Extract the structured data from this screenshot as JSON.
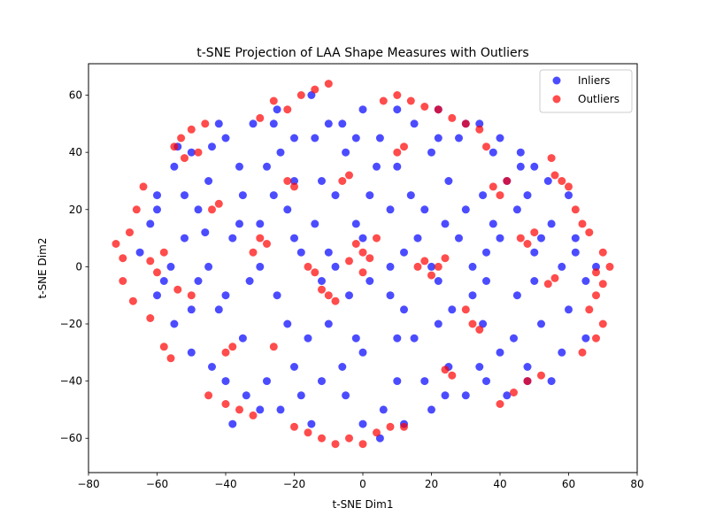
{
  "chart_data": {
    "type": "scatter",
    "title": "t-SNE Projection of LAA Shape Measures with Outliers",
    "xlabel": "t-SNE Dim1",
    "ylabel": "t-SNE Dim2",
    "xlim": [
      -80,
      80
    ],
    "ylim": [
      -72,
      71
    ],
    "xticks": [
      -80,
      -60,
      -40,
      -20,
      0,
      20,
      40,
      60,
      80
    ],
    "yticks": [
      -60,
      -40,
      -20,
      0,
      20,
      40,
      60
    ],
    "grid": false,
    "legend": {
      "position": "top-right"
    },
    "series": [
      {
        "name": "Inliers",
        "color": "#0000ff",
        "alpha": 0.7,
        "points": [
          [
            -65,
            5
          ],
          [
            -62,
            15
          ],
          [
            -60,
            25
          ],
          [
            -58,
            -5
          ],
          [
            -55,
            35
          ],
          [
            -55,
            -20
          ],
          [
            -52,
            10
          ],
          [
            -50,
            40
          ],
          [
            -50,
            -30
          ],
          [
            -48,
            20
          ],
          [
            -45,
            0
          ],
          [
            -45,
            30
          ],
          [
            -42,
            -15
          ],
          [
            -40,
            45
          ],
          [
            -40,
            -40
          ],
          [
            -38,
            10
          ],
          [
            -35,
            25
          ],
          [
            -35,
            -25
          ],
          [
            -32,
            50
          ],
          [
            -30,
            0
          ],
          [
            -30,
            -50
          ],
          [
            -28,
            35
          ],
          [
            -25,
            -10
          ],
          [
            -25,
            55
          ],
          [
            -22,
            20
          ],
          [
            -20,
            -35
          ],
          [
            -20,
            45
          ],
          [
            -18,
            5
          ],
          [
            -15,
            60
          ],
          [
            -15,
            -55
          ],
          [
            -12,
            30
          ],
          [
            -10,
            -20
          ],
          [
            -10,
            50
          ],
          [
            -8,
            0
          ],
          [
            -5,
            40
          ],
          [
            -5,
            -45
          ],
          [
            -2,
            15
          ],
          [
            0,
            55
          ],
          [
            0,
            -30
          ],
          [
            2,
            25
          ],
          [
            5,
            -60
          ],
          [
            5,
            45
          ],
          [
            8,
            -10
          ],
          [
            10,
            35
          ],
          [
            10,
            -40
          ],
          [
            12,
            5
          ],
          [
            15,
            50
          ],
          [
            15,
            -25
          ],
          [
            18,
            20
          ],
          [
            20,
            -50
          ],
          [
            20,
            40
          ],
          [
            22,
            -5
          ],
          [
            25,
            30
          ],
          [
            25,
            -35
          ],
          [
            28,
            10
          ],
          [
            30,
            50
          ],
          [
            30,
            -45
          ],
          [
            32,
            0
          ],
          [
            35,
            25
          ],
          [
            35,
            -20
          ],
          [
            38,
            40
          ],
          [
            40,
            -30
          ],
          [
            40,
            10
          ],
          [
            42,
            30
          ],
          [
            45,
            -10
          ],
          [
            45,
            20
          ],
          [
            48,
            -35
          ],
          [
            50,
            5
          ],
          [
            50,
            35
          ],
          [
            52,
            -20
          ],
          [
            55,
            15
          ],
          [
            55,
            -40
          ],
          [
            58,
            0
          ],
          [
            60,
            25
          ],
          [
            60,
            -15
          ],
          [
            62,
            10
          ],
          [
            65,
            -5
          ],
          [
            65,
            -25
          ],
          [
            68,
            0
          ],
          [
            -60,
            -10
          ],
          [
            -48,
            -5
          ],
          [
            -36,
            15
          ],
          [
            -24,
            40
          ],
          [
            -12,
            -5
          ],
          [
            0,
            10
          ],
          [
            12,
            -15
          ],
          [
            24,
            15
          ],
          [
            36,
            5
          ],
          [
            48,
            25
          ],
          [
            -44,
            -35
          ],
          [
            -28,
            -40
          ],
          [
            -16,
            -25
          ],
          [
            -4,
            -10
          ],
          [
            8,
            20
          ],
          [
            20,
            0
          ],
          [
            32,
            -10
          ],
          [
            44,
            -25
          ],
          [
            -52,
            25
          ],
          [
            -36,
            35
          ],
          [
            -20,
            10
          ],
          [
            -8,
            25
          ],
          [
            4,
            35
          ],
          [
            16,
            10
          ],
          [
            28,
            45
          ],
          [
            40,
            45
          ],
          [
            -40,
            -10
          ],
          [
            -26,
            25
          ],
          [
            -14,
            15
          ],
          [
            -2,
            -25
          ],
          [
            10,
            -25
          ],
          [
            22,
            -20
          ],
          [
            34,
            -35
          ],
          [
            46,
            40
          ],
          [
            -56,
            0
          ],
          [
            -46,
            12
          ],
          [
            -33,
            -5
          ],
          [
            -18,
            -45
          ],
          [
            -6,
            50
          ],
          [
            6,
            -50
          ],
          [
            18,
            -40
          ],
          [
            30,
            20
          ],
          [
            42,
            -45
          ],
          [
            54,
            30
          ],
          [
            -60,
            20
          ],
          [
            -42,
            50
          ],
          [
            -30,
            15
          ],
          [
            -22,
            -20
          ],
          [
            -10,
            5
          ],
          [
            2,
            -5
          ],
          [
            14,
            25
          ],
          [
            26,
            -15
          ],
          [
            38,
            15
          ],
          [
            50,
            -5
          ],
          [
            62,
            5
          ],
          [
            -50,
            -15
          ],
          [
            -34,
            -45
          ],
          [
            -20,
            30
          ],
          [
            -6,
            -35
          ],
          [
            8,
            0
          ],
          [
            22,
            45
          ],
          [
            36,
            -5
          ],
          [
            52,
            10
          ],
          [
            -38,
            -55
          ],
          [
            -24,
            -50
          ],
          [
            -12,
            -40
          ],
          [
            0,
            -55
          ],
          [
            12,
            -55
          ],
          [
            24,
            -45
          ],
          [
            36,
            -40
          ],
          [
            48,
            -40
          ],
          [
            58,
            -30
          ],
          [
            -54,
            42
          ],
          [
            -44,
            42
          ],
          [
            -26,
            50
          ],
          [
            -14,
            45
          ],
          [
            -2,
            45
          ],
          [
            10,
            55
          ],
          [
            22,
            55
          ],
          [
            34,
            50
          ],
          [
            46,
            35
          ]
        ]
      },
      {
        "name": "Outliers",
        "color": "#ff0000",
        "alpha": 0.7,
        "points": [
          [
            -72,
            8
          ],
          [
            -70,
            3
          ],
          [
            -68,
            12
          ],
          [
            -70,
            -5
          ],
          [
            -66,
            20
          ],
          [
            -67,
            -12
          ],
          [
            -64,
            28
          ],
          [
            -62,
            -18
          ],
          [
            -58,
            -28
          ],
          [
            -56,
            -32
          ],
          [
            -55,
            42
          ],
          [
            -53,
            45
          ],
          [
            -50,
            48
          ],
          [
            -48,
            40
          ],
          [
            -46,
            50
          ],
          [
            -52,
            38
          ],
          [
            -45,
            -45
          ],
          [
            -40,
            -48
          ],
          [
            -36,
            -50
          ],
          [
            -32,
            -52
          ],
          [
            -30,
            52
          ],
          [
            -26,
            58
          ],
          [
            -22,
            55
          ],
          [
            -18,
            60
          ],
          [
            -14,
            62
          ],
          [
            -10,
            64
          ],
          [
            -8,
            -62
          ],
          [
            -12,
            -60
          ],
          [
            -16,
            -58
          ],
          [
            -20,
            -56
          ],
          [
            -4,
            -60
          ],
          [
            0,
            -62
          ],
          [
            4,
            -58
          ],
          [
            8,
            -56
          ],
          [
            12,
            -56
          ],
          [
            6,
            58
          ],
          [
            10,
            60
          ],
          [
            14,
            58
          ],
          [
            18,
            56
          ],
          [
            22,
            55
          ],
          [
            26,
            52
          ],
          [
            30,
            50
          ],
          [
            34,
            48
          ],
          [
            36,
            42
          ],
          [
            40,
            -48
          ],
          [
            44,
            -44
          ],
          [
            48,
            -40
          ],
          [
            52,
            -38
          ],
          [
            55,
            38
          ],
          [
            56,
            32
          ],
          [
            58,
            30
          ],
          [
            60,
            28
          ],
          [
            62,
            20
          ],
          [
            64,
            15
          ],
          [
            66,
            12
          ],
          [
            68,
            -2
          ],
          [
            70,
            -6
          ],
          [
            72,
            0
          ],
          [
            70,
            5
          ],
          [
            68,
            -10
          ],
          [
            66,
            -15
          ],
          [
            70,
            -20
          ],
          [
            68,
            -25
          ],
          [
            64,
            -30
          ],
          [
            -2,
            8
          ],
          [
            0,
            5
          ],
          [
            2,
            3
          ],
          [
            -4,
            2
          ],
          [
            4,
            10
          ],
          [
            0,
            -2
          ],
          [
            16,
            0
          ],
          [
            18,
            2
          ],
          [
            20,
            -3
          ],
          [
            22,
            0
          ],
          [
            24,
            3
          ],
          [
            -16,
            0
          ],
          [
            -14,
            -2
          ],
          [
            -12,
            -8
          ],
          [
            -10,
            -10
          ],
          [
            -8,
            -12
          ],
          [
            -30,
            10
          ],
          [
            -28,
            8
          ],
          [
            -32,
            5
          ],
          [
            -50,
            -10
          ],
          [
            -54,
            -8
          ],
          [
            30,
            -15
          ],
          [
            32,
            -20
          ],
          [
            34,
            -22
          ],
          [
            38,
            28
          ],
          [
            40,
            25
          ],
          [
            42,
            30
          ],
          [
            -44,
            20
          ],
          [
            -42,
            22
          ],
          [
            -22,
            30
          ],
          [
            -20,
            28
          ],
          [
            10,
            40
          ],
          [
            12,
            42
          ],
          [
            -60,
            -2
          ],
          [
            -62,
            2
          ],
          [
            -58,
            5
          ],
          [
            46,
            10
          ],
          [
            48,
            8
          ],
          [
            50,
            12
          ],
          [
            -40,
            -30
          ],
          [
            -38,
            -28
          ],
          [
            24,
            -36
          ],
          [
            26,
            -38
          ],
          [
            -6,
            30
          ],
          [
            -4,
            32
          ],
          [
            54,
            -6
          ],
          [
            56,
            -4
          ],
          [
            -26,
            -28
          ]
        ]
      }
    ]
  }
}
